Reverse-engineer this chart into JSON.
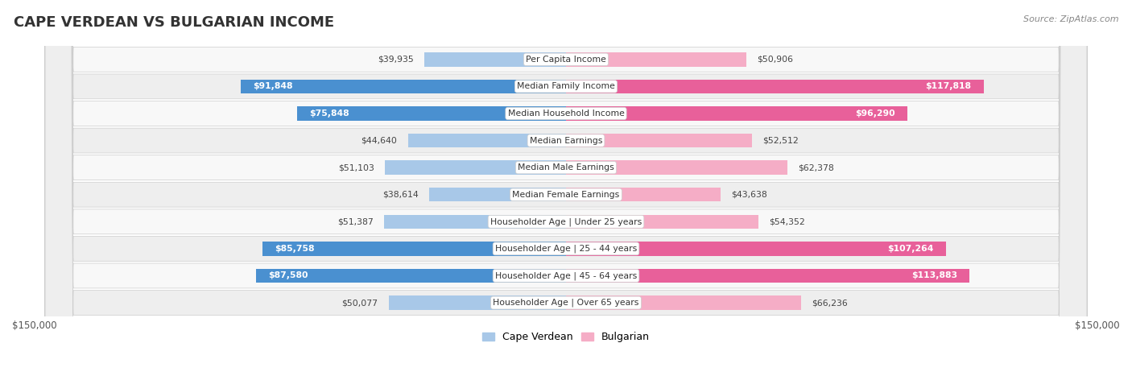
{
  "title": "CAPE VERDEAN VS BULGARIAN INCOME",
  "source": "Source: ZipAtlas.com",
  "max_val": 150000,
  "categories": [
    "Per Capita Income",
    "Median Family Income",
    "Median Household Income",
    "Median Earnings",
    "Median Male Earnings",
    "Median Female Earnings",
    "Householder Age | Under 25 years",
    "Householder Age | 25 - 44 years",
    "Householder Age | 45 - 64 years",
    "Householder Age | Over 65 years"
  ],
  "cape_verdean": [
    39935,
    91848,
    75848,
    44640,
    51103,
    38614,
    51387,
    85758,
    87580,
    50077
  ],
  "bulgarian": [
    50906,
    117818,
    96290,
    52512,
    62378,
    43638,
    54352,
    107264,
    113883,
    66236
  ],
  "cape_verdean_labels": [
    "$39,935",
    "$91,848",
    "$75,848",
    "$44,640",
    "$51,103",
    "$38,614",
    "$51,387",
    "$85,758",
    "$87,580",
    "$50,077"
  ],
  "bulgarian_labels": [
    "$50,906",
    "$117,818",
    "$96,290",
    "$52,512",
    "$62,378",
    "$43,638",
    "$54,352",
    "$107,264",
    "$113,883",
    "$66,236"
  ],
  "color_cape_verdean_light": "#a8c8e8",
  "color_cape_verdean_dark": "#4a90d0",
  "color_bulgarian_light": "#f5adc6",
  "color_bulgarian_dark": "#e8609a",
  "bg_row_light": "#eeeeee",
  "bg_row_white": "#f8f8f8",
  "bar_height": 0.52,
  "figsize": [
    14.06,
    4.67
  ],
  "dpi": 100,
  "cv_large_threshold": 65000,
  "bul_large_threshold": 85000
}
